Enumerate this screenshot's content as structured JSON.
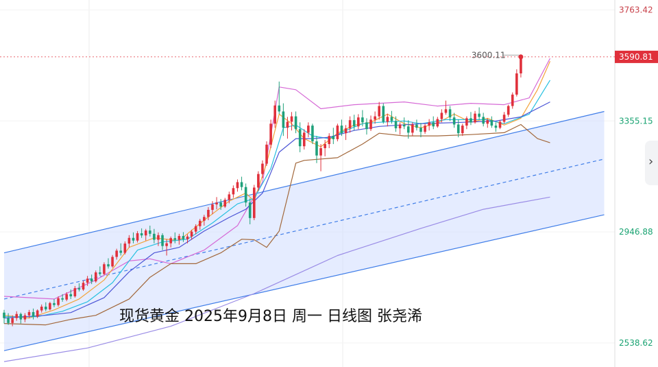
{
  "chart_data": {
    "type": "candlestick",
    "caption": "现货黄金 2025年9月8日 周一 日线图 张尧浠",
    "y_axis": {
      "ticks": [
        3763.42,
        3355.15,
        2946.88,
        2538.62
      ],
      "ylim": [
        2450,
        3800
      ],
      "current_price": 3590.81,
      "current_price_color": "#e0303b"
    },
    "peak_label": "3600.11",
    "colors": {
      "up": "#e0303b",
      "down": "#1fa07a",
      "channel_fill": "#cfdcff",
      "channel_line": "#3f7de8",
      "bollinger": "#d66ad6",
      "ma_fast": "#f3a33a",
      "ma_mid": "#26c0e0",
      "ma_slow": "#4c55d6",
      "ma_long_brown": "#a2673a",
      "ma_long_purple": "#9a8ce6",
      "axis_green": "#1aa372"
    },
    "candles": [
      [
        2650,
        2660,
        2610,
        2630
      ],
      [
        2630,
        2648,
        2605,
        2612
      ],
      [
        2612,
        2640,
        2600,
        2630
      ],
      [
        2630,
        2655,
        2620,
        2645
      ],
      [
        2645,
        2650,
        2610,
        2625
      ],
      [
        2625,
        2648,
        2615,
        2640
      ],
      [
        2640,
        2660,
        2630,
        2652
      ],
      [
        2652,
        2665,
        2625,
        2635
      ],
      [
        2635,
        2662,
        2630,
        2658
      ],
      [
        2658,
        2680,
        2650,
        2672
      ],
      [
        2672,
        2688,
        2655,
        2662
      ],
      [
        2662,
        2690,
        2658,
        2685
      ],
      [
        2685,
        2700,
        2670,
        2678
      ],
      [
        2678,
        2710,
        2672,
        2703
      ],
      [
        2703,
        2718,
        2690,
        2698
      ],
      [
        2698,
        2725,
        2692,
        2718
      ],
      [
        2718,
        2735,
        2700,
        2710
      ],
      [
        2710,
        2748,
        2705,
        2740
      ],
      [
        2740,
        2758,
        2728,
        2735
      ],
      [
        2735,
        2768,
        2730,
        2760
      ],
      [
        2760,
        2785,
        2748,
        2775
      ],
      [
        2775,
        2790,
        2755,
        2765
      ],
      [
        2765,
        2805,
        2760,
        2798
      ],
      [
        2798,
        2820,
        2785,
        2792
      ],
      [
        2792,
        2835,
        2788,
        2828
      ],
      [
        2828,
        2850,
        2812,
        2820
      ],
      [
        2820,
        2862,
        2815,
        2855
      ],
      [
        2855,
        2885,
        2845,
        2878
      ],
      [
        2878,
        2905,
        2860,
        2870
      ],
      [
        2870,
        2912,
        2864,
        2904
      ],
      [
        2904,
        2935,
        2890,
        2925
      ],
      [
        2925,
        2945,
        2905,
        2915
      ],
      [
        2915,
        2950,
        2908,
        2942
      ],
      [
        2942,
        2960,
        2925,
        2934
      ],
      [
        2934,
        2958,
        2915,
        2952
      ],
      [
        2952,
        2970,
        2930,
        2940
      ],
      [
        2940,
        2958,
        2905,
        2918
      ],
      [
        2918,
        2945,
        2895,
        2935
      ],
      [
        2935,
        2942,
        2880,
        2895
      ],
      [
        2895,
        2920,
        2860,
        2905
      ],
      [
        2905,
        2930,
        2890,
        2924
      ],
      [
        2924,
        2945,
        2905,
        2918
      ],
      [
        2918,
        2940,
        2900,
        2932
      ],
      [
        2932,
        2946,
        2910,
        2920
      ],
      [
        2920,
        2938,
        2905,
        2930
      ],
      [
        2930,
        2955,
        2918,
        2948
      ],
      [
        2948,
        2975,
        2938,
        2968
      ],
      [
        2968,
        2995,
        2955,
        2988
      ],
      [
        2988,
        3010,
        2970,
        3002
      ],
      [
        3002,
        3038,
        2990,
        3028
      ],
      [
        3028,
        3060,
        3012,
        3048
      ],
      [
        3048,
        3075,
        3030,
        3055
      ],
      [
        3055,
        3068,
        3028,
        3040
      ],
      [
        3040,
        3072,
        3035,
        3065
      ],
      [
        3065,
        3095,
        3052,
        3085
      ],
      [
        3085,
        3118,
        3072,
        3108
      ],
      [
        3108,
        3140,
        3095,
        3130
      ],
      [
        3130,
        3150,
        3100,
        3112
      ],
      [
        3112,
        3125,
        3040,
        3055
      ],
      [
        3055,
        3070,
        2975,
        2998
      ],
      [
        2998,
        3120,
        2990,
        3110
      ],
      [
        3110,
        3170,
        3098,
        3160
      ],
      [
        3160,
        3210,
        3145,
        3198
      ],
      [
        3198,
        3280,
        3190,
        3268
      ],
      [
        3268,
        3360,
        3255,
        3345
      ],
      [
        3345,
        3430,
        3330,
        3412
      ],
      [
        3412,
        3500,
        3380,
        3390
      ],
      [
        3390,
        3420,
        3300,
        3330
      ],
      [
        3330,
        3370,
        3290,
        3352
      ],
      [
        3352,
        3388,
        3320,
        3372
      ],
      [
        3372,
        3390,
        3310,
        3325
      ],
      [
        3325,
        3350,
        3240,
        3262
      ],
      [
        3262,
        3325,
        3250,
        3312
      ],
      [
        3312,
        3350,
        3295,
        3338
      ],
      [
        3338,
        3345,
        3270,
        3280
      ],
      [
        3280,
        3300,
        3200,
        3228
      ],
      [
        3228,
        3270,
        3170,
        3255
      ],
      [
        3255,
        3285,
        3225,
        3270
      ],
      [
        3270,
        3310,
        3255,
        3300
      ],
      [
        3300,
        3330,
        3270,
        3288
      ],
      [
        3288,
        3345,
        3280,
        3338
      ],
      [
        3338,
        3360,
        3300,
        3310
      ],
      [
        3310,
        3340,
        3285,
        3328
      ],
      [
        3328,
        3372,
        3312,
        3358
      ],
      [
        3358,
        3378,
        3320,
        3335
      ],
      [
        3335,
        3380,
        3325,
        3368
      ],
      [
        3368,
        3395,
        3335,
        3350
      ],
      [
        3350,
        3365,
        3305,
        3325
      ],
      [
        3325,
        3375,
        3318,
        3360
      ],
      [
        3360,
        3390,
        3345,
        3372
      ],
      [
        3372,
        3425,
        3360,
        3410
      ],
      [
        3410,
        3420,
        3345,
        3352
      ],
      [
        3352,
        3382,
        3335,
        3370
      ],
      [
        3370,
        3392,
        3345,
        3355
      ],
      [
        3355,
        3372,
        3315,
        3328
      ],
      [
        3328,
        3350,
        3305,
        3342
      ],
      [
        3342,
        3368,
        3325,
        3335
      ],
      [
        3335,
        3358,
        3290,
        3312
      ],
      [
        3312,
        3350,
        3300,
        3342
      ],
      [
        3342,
        3360,
        3320,
        3330
      ],
      [
        3330,
        3348,
        3295,
        3315
      ],
      [
        3315,
        3345,
        3308,
        3338
      ],
      [
        3338,
        3362,
        3320,
        3350
      ],
      [
        3350,
        3372,
        3325,
        3335
      ],
      [
        3335,
        3370,
        3330,
        3362
      ],
      [
        3362,
        3398,
        3350,
        3385
      ],
      [
        3385,
        3430,
        3378,
        3398
      ],
      [
        3398,
        3410,
        3355,
        3368
      ],
      [
        3368,
        3385,
        3330,
        3342
      ],
      [
        3342,
        3360,
        3295,
        3310
      ],
      [
        3310,
        3345,
        3300,
        3338
      ],
      [
        3338,
        3372,
        3325,
        3365
      ],
      [
        3365,
        3388,
        3340,
        3350
      ],
      [
        3350,
        3392,
        3345,
        3382
      ],
      [
        3382,
        3405,
        3360,
        3370
      ],
      [
        3370,
        3385,
        3335,
        3345
      ],
      [
        3345,
        3365,
        3330,
        3358
      ],
      [
        3358,
        3372,
        3330,
        3338
      ],
      [
        3338,
        3350,
        3315,
        3330
      ],
      [
        3330,
        3358,
        3325,
        3352
      ],
      [
        3352,
        3388,
        3345,
        3378
      ],
      [
        3378,
        3415,
        3370,
        3410
      ],
      [
        3410,
        3460,
        3400,
        3452
      ],
      [
        3452,
        3545,
        3445,
        3530
      ],
      [
        3530,
        3600,
        3515,
        3590
      ]
    ],
    "series": [
      {
        "key": "bb_upper",
        "color": "#d66ad6",
        "points": [
          [
            0,
            2710
          ],
          [
            12,
            2700
          ],
          [
            22,
            2770
          ],
          [
            30,
            2840
          ],
          [
            35,
            2848
          ],
          [
            40,
            2830
          ],
          [
            48,
            2880
          ],
          [
            56,
            2970
          ],
          [
            62,
            3130
          ],
          [
            66,
            3480
          ],
          [
            70,
            3470
          ],
          [
            76,
            3400
          ],
          [
            84,
            3415
          ],
          [
            96,
            3425
          ],
          [
            104,
            3410
          ],
          [
            112,
            3420
          ],
          [
            120,
            3415
          ],
          [
            126,
            3440
          ],
          [
            131,
            3585
          ]
        ]
      },
      {
        "key": "bb_lower",
        "color": "#a2673a",
        "points": [
          [
            0,
            2610
          ],
          [
            10,
            2605
          ],
          [
            16,
            2625
          ],
          [
            22,
            2640
          ],
          [
            30,
            2700
          ],
          [
            35,
            2780
          ],
          [
            40,
            2830
          ],
          [
            46,
            2830
          ],
          [
            52,
            2870
          ],
          [
            57,
            2920
          ],
          [
            60,
            2918
          ],
          [
            63,
            2890
          ],
          [
            66,
            2950
          ],
          [
            70,
            3200
          ],
          [
            72,
            3210
          ],
          [
            80,
            3220
          ],
          [
            86,
            3270
          ],
          [
            90,
            3310
          ],
          [
            96,
            3300
          ],
          [
            104,
            3300
          ],
          [
            112,
            3305
          ],
          [
            120,
            3312
          ],
          [
            124,
            3342
          ],
          [
            128,
            3290
          ],
          [
            131,
            3275
          ]
        ]
      },
      {
        "key": "ma_fast",
        "color": "#f3a33a",
        "points": [
          [
            0,
            2640
          ],
          [
            6,
            2630
          ],
          [
            12,
            2660
          ],
          [
            18,
            2700
          ],
          [
            24,
            2770
          ],
          [
            30,
            2890
          ],
          [
            36,
            2925
          ],
          [
            42,
            2915
          ],
          [
            48,
            2990
          ],
          [
            54,
            3060
          ],
          [
            58,
            3090
          ],
          [
            60,
            3060
          ],
          [
            63,
            3200
          ],
          [
            66,
            3380
          ],
          [
            69,
            3345
          ],
          [
            72,
            3290
          ],
          [
            76,
            3260
          ],
          [
            80,
            3310
          ],
          [
            84,
            3340
          ],
          [
            88,
            3350
          ],
          [
            92,
            3380
          ],
          [
            96,
            3345
          ],
          [
            100,
            3330
          ],
          [
            104,
            3348
          ],
          [
            108,
            3380
          ],
          [
            112,
            3350
          ],
          [
            116,
            3365
          ],
          [
            120,
            3340
          ],
          [
            124,
            3365
          ],
          [
            128,
            3470
          ],
          [
            131,
            3575
          ]
        ]
      },
      {
        "key": "ma_mid",
        "color": "#26c0e0",
        "points": [
          [
            0,
            2635
          ],
          [
            8,
            2635
          ],
          [
            14,
            2655
          ],
          [
            20,
            2690
          ],
          [
            26,
            2760
          ],
          [
            32,
            2880
          ],
          [
            38,
            2910
          ],
          [
            44,
            2920
          ],
          [
            50,
            2980
          ],
          [
            56,
            3050
          ],
          [
            60,
            3070
          ],
          [
            64,
            3180
          ],
          [
            67,
            3330
          ],
          [
            70,
            3340
          ],
          [
            74,
            3300
          ],
          [
            78,
            3290
          ],
          [
            82,
            3320
          ],
          [
            86,
            3345
          ],
          [
            90,
            3350
          ],
          [
            96,
            3355
          ],
          [
            100,
            3345
          ],
          [
            106,
            3360
          ],
          [
            110,
            3360
          ],
          [
            116,
            3360
          ],
          [
            120,
            3345
          ],
          [
            126,
            3380
          ],
          [
            131,
            3505
          ]
        ]
      },
      {
        "key": "ma_slow",
        "color": "#4c55d6",
        "points": [
          [
            0,
            2630
          ],
          [
            10,
            2640
          ],
          [
            16,
            2650
          ],
          [
            24,
            2705
          ],
          [
            30,
            2800
          ],
          [
            36,
            2870
          ],
          [
            42,
            2890
          ],
          [
            48,
            2950
          ],
          [
            54,
            3000
          ],
          [
            58,
            3030
          ],
          [
            62,
            3090
          ],
          [
            66,
            3240
          ],
          [
            70,
            3290
          ],
          [
            74,
            3290
          ],
          [
            78,
            3295
          ],
          [
            84,
            3320
          ],
          [
            90,
            3335
          ],
          [
            100,
            3345
          ],
          [
            110,
            3350
          ],
          [
            118,
            3355
          ],
          [
            124,
            3370
          ],
          [
            131,
            3425
          ]
        ]
      },
      {
        "key": "ma_long",
        "color": "#9a8ce6",
        "points": [
          [
            0,
            2470
          ],
          [
            20,
            2520
          ],
          [
            40,
            2600
          ],
          [
            60,
            2720
          ],
          [
            80,
            2860
          ],
          [
            100,
            2960
          ],
          [
            115,
            3030
          ],
          [
            131,
            3075
          ]
        ]
      }
    ],
    "channel": {
      "upper": [
        [
          0,
          2870
        ],
        [
          144,
          3390
        ]
      ],
      "mid": [
        [
          0,
          2700
        ],
        [
          144,
          3215
        ]
      ],
      "lower": [
        [
          0,
          2510
        ],
        [
          144,
          3010
        ]
      ]
    }
  }
}
